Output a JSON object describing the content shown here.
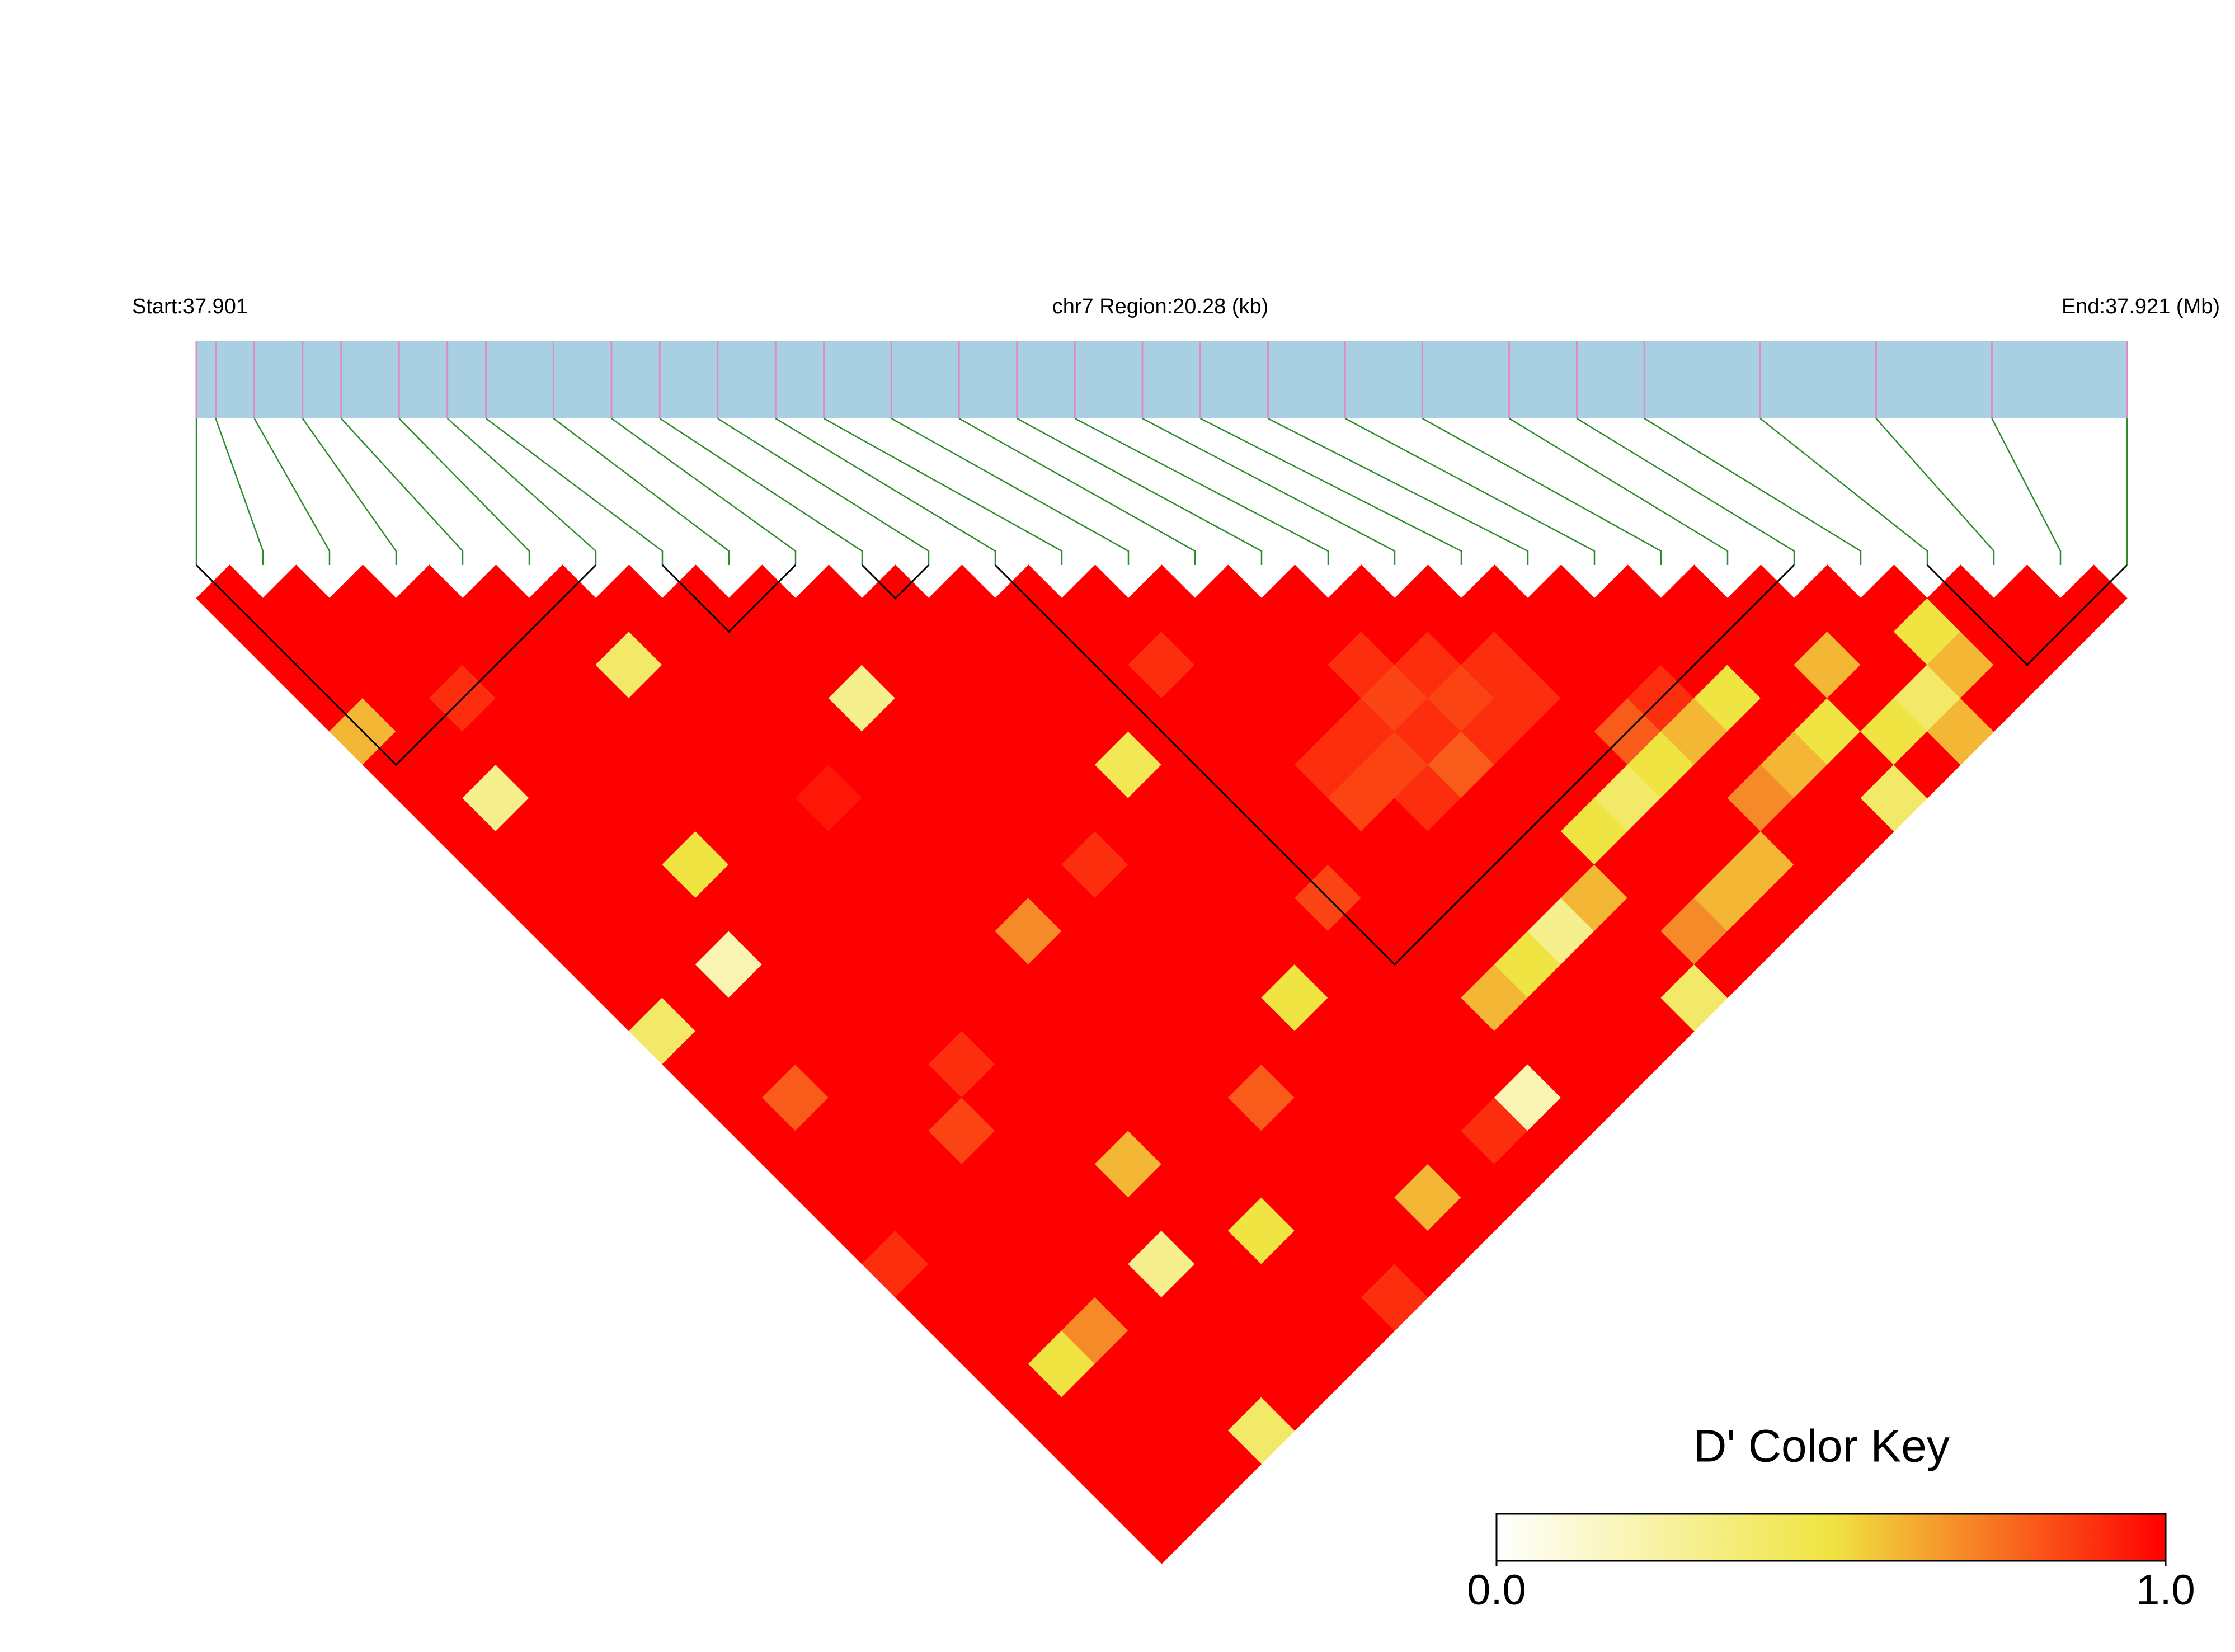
{
  "chart_data": {
    "type": "ld_heatmap",
    "label_start": "Start:37.901",
    "title": "chr7 Region:20.28 (kb)",
    "label_end": "End:37.921 (Mb)",
    "xlim": [
      37.901,
      37.921
    ],
    "positions": [
      37.901,
      37.9012,
      37.9016,
      37.9021,
      37.9025,
      37.9031,
      37.9036,
      37.904,
      37.9047,
      37.9053,
      37.9058,
      37.9064,
      37.907,
      37.9075,
      37.9082,
      37.9089,
      37.9095,
      37.9101,
      37.9108,
      37.9114,
      37.9121,
      37.9129,
      37.9137,
      37.9146,
      37.9153,
      37.916,
      37.9172,
      37.9184,
      37.9196,
      37.921
    ],
    "dprime": [
      [
        1,
        1,
        1,
        1,
        0.6,
        1,
        1,
        1,
        1,
        1,
        1,
        1,
        1,
        0.4,
        1,
        1,
        1,
        1,
        1,
        1,
        0.9,
        1,
        1,
        1,
        1,
        1,
        1,
        1,
        1
      ],
      [
        1,
        1,
        1,
        1,
        1,
        1,
        0.3,
        1,
        1,
        1,
        1,
        1,
        1,
        1,
        1,
        0.8,
        1,
        1,
        1,
        1,
        1,
        1,
        1,
        0.5,
        1,
        1,
        1,
        1
      ],
      [
        1,
        1,
        1,
        0.9,
        1,
        1,
        1,
        1,
        1,
        1,
        1,
        0.2,
        1,
        1,
        1,
        1,
        1,
        1,
        1,
        1,
        1,
        1,
        0.7,
        1,
        1,
        1,
        1
      ],
      [
        1,
        1,
        1,
        1,
        1,
        1,
        1,
        1,
        0.5,
        1,
        1,
        1,
        1,
        1,
        1,
        1,
        0.85,
        1,
        1,
        1,
        1,
        1,
        1,
        1,
        1,
        0.4
      ],
      [
        1,
        1,
        1,
        1,
        1,
        1,
        1,
        1,
        1,
        1,
        1,
        1,
        1,
        1,
        0.9,
        1,
        1,
        1,
        1,
        1,
        0.3,
        1,
        1,
        1,
        1
      ],
      [
        1,
        1,
        0.4,
        1,
        1,
        1,
        1,
        1,
        1,
        1,
        1,
        1,
        1,
        1,
        1,
        1,
        1,
        0.6,
        1,
        1,
        1,
        1,
        1,
        1
      ],
      [
        1,
        1,
        1,
        1,
        1,
        1,
        0.95,
        1,
        1,
        1,
        1,
        1,
        1,
        1,
        1,
        1,
        1,
        1,
        1,
        0.5,
        1,
        1,
        1
      ],
      [
        1,
        1,
        1,
        1,
        1,
        1,
        1,
        1,
        1,
        1,
        0.7,
        1,
        1,
        1,
        1,
        1,
        1,
        1,
        1,
        1,
        1,
        0.9
      ],
      [
        1,
        1,
        1,
        0.3,
        1,
        1,
        1,
        1,
        1,
        1,
        1,
        1,
        1,
        1,
        1,
        0.8,
        1,
        1,
        1,
        1,
        1
      ],
      [
        1,
        1,
        1,
        1,
        1,
        1,
        1,
        1,
        0.9,
        1,
        1,
        1,
        1,
        1,
        1,
        1,
        1,
        1,
        0.6,
        1
      ],
      [
        1,
        1,
        1,
        1,
        1,
        1,
        1,
        1,
        1,
        1,
        1,
        1,
        0.5,
        1,
        1,
        1,
        1,
        1,
        1
      ],
      [
        1,
        1,
        1,
        1,
        1,
        0.45,
        1,
        1,
        1,
        1,
        1,
        1,
        1,
        1,
        1,
        1,
        0.9,
        1
      ],
      [
        1,
        1,
        1,
        1,
        1,
        1,
        1,
        1,
        1,
        0.85,
        1,
        1,
        1,
        1,
        1,
        0.2,
        1
      ],
      [
        1,
        1,
        0.9,
        1,
        1,
        1,
        1,
        1,
        1,
        1,
        1,
        1,
        0.6,
        1,
        1,
        1
      ],
      [
        1,
        1,
        1,
        1,
        1,
        0.9,
        0.85,
        1,
        1,
        1,
        1,
        0.5,
        1,
        1,
        1
      ],
      [
        1,
        1,
        1,
        1,
        0.9,
        0.85,
        0.9,
        1,
        1,
        1,
        0.3,
        1,
        1,
        1
      ],
      [
        1,
        1,
        0.9,
        0.85,
        0.9,
        0.8,
        1,
        1,
        1,
        0.6,
        1,
        1,
        0.4
      ],
      [
        1,
        1,
        0.9,
        0.85,
        0.9,
        1,
        1,
        0.5,
        1,
        1,
        0.7,
        1
      ],
      [
        1,
        1,
        0.9,
        0.9,
        1,
        1,
        0.4,
        1,
        1,
        0.6,
        1
      ],
      [
        1,
        1,
        1,
        1,
        0.8,
        0.5,
        1,
        1,
        0.6,
        1
      ],
      [
        1,
        1,
        1,
        0.9,
        0.6,
        1,
        0.7,
        1,
        1
      ],
      [
        1,
        1,
        1,
        0.5,
        1,
        0.6,
        1,
        1
      ],
      [
        1,
        1,
        1,
        1,
        0.5,
        1,
        0.4
      ],
      [
        1,
        1,
        0.6,
        1,
        0.5,
        1
      ],
      [
        1,
        1,
        1,
        0.4,
        0.6
      ],
      [
        1,
        0.5,
        0.6,
        1
      ],
      [
        1,
        1,
        1
      ],
      [
        1,
        1
      ],
      [
        1
      ]
    ],
    "blocks": [
      [
        0,
        6
      ],
      [
        7,
        9
      ],
      [
        10,
        11
      ],
      [
        12,
        24
      ],
      [
        26,
        29
      ]
    ],
    "bar_color": "#a8cfe2",
    "snp_color": "#e08cc4",
    "connector_color": "#2e8b2e",
    "block_color": "#000000",
    "color_scale": [
      "#ffffff",
      "#f0e442",
      "#ff0000"
    ],
    "legend": {
      "title": "D' Color Key",
      "clim": [
        0,
        1
      ],
      "ticks": [
        {
          "value": 0,
          "label": "0.0"
        },
        {
          "value": 1,
          "label": "1.0"
        }
      ]
    }
  }
}
